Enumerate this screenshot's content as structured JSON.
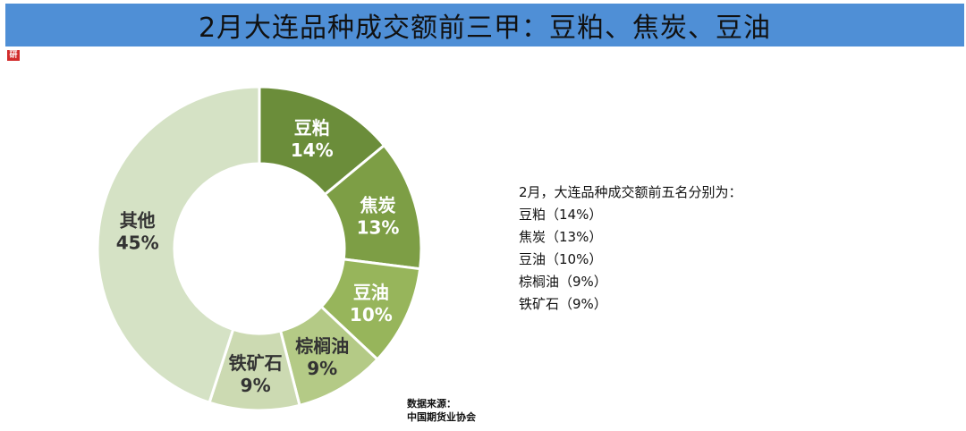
{
  "header": {
    "title": "2月大连品种成交额前三甲：豆粕、焦炭、豆油"
  },
  "chart_data": {
    "type": "pie",
    "categories": [
      "豆粕",
      "焦炭",
      "豆油",
      "棕榈油",
      "铁矿石",
      "其他"
    ],
    "value_labels": [
      "14%",
      "13%",
      "10%",
      "9%",
      "9%",
      "45%"
    ],
    "values": [
      14,
      13,
      10,
      9,
      9,
      45
    ],
    "colors": [
      "#6b8d3a",
      "#7d9e45",
      "#97b55b",
      "#b4ca86",
      "#ccdab2",
      "#d5e2c5"
    ],
    "label_colors": [
      "#ffffff",
      "#ffffff",
      "#ffffff",
      "#333333",
      "#333333",
      "#333333"
    ],
    "legend": "none"
  },
  "summary": {
    "heading": "2月，大连品种成交额前五名分别为：",
    "items": [
      "豆粕（14%）",
      "焦炭（13%）",
      "豆油（10%）",
      "棕榈油（9%）",
      "铁矿石（9%）"
    ]
  },
  "source": {
    "label": "数据来源：",
    "name": "中国期货业协会"
  }
}
